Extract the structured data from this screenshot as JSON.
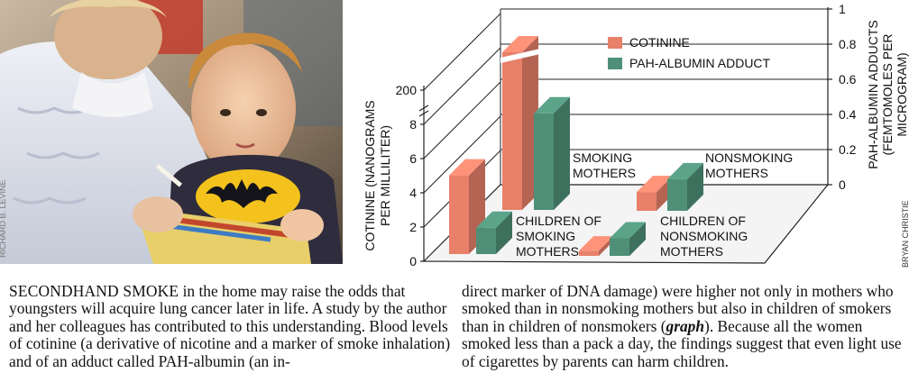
{
  "photo": {
    "credit": "RICHARD B. LEVINE"
  },
  "chart_credit": "BRYAN CHRISTIE",
  "chart_data": {
    "type": "bar",
    "categories": [
      "CHILDREN OF SMOKING MOTHERS",
      "SMOKING MOTHERS",
      "CHILDREN OF NONSMOKING MOTHERS",
      "NONSMOKING MOTHERS"
    ],
    "category_labels": [
      [
        "CHILDREN OF",
        "SMOKING",
        "MOTHERS"
      ],
      [
        "SMOKING",
        "MOTHERS"
      ],
      [
        "CHILDREN OF",
        "NONSMOKING",
        "MOTHERS"
      ],
      [
        "NONSMOKING",
        "MOTHERS"
      ]
    ],
    "series": [
      {
        "name": "COTININE",
        "color": "#e8806a",
        "values": [
          4.6,
          200,
          0.3,
          1.1
        ],
        "axis": "left"
      },
      {
        "name": "PAH-ALBUMIN ADDUCT",
        "color": "#4f8f78",
        "values": [
          0.15,
          0.55,
          0.1,
          0.18
        ],
        "axis": "right"
      }
    ],
    "left_axis": {
      "label": [
        "COTININE (NANOGRAMS",
        "PER MILLILITER)"
      ],
      "ticks": [
        "0",
        "2",
        "4",
        "6",
        "8",
        "200"
      ],
      "range": [
        0,
        200
      ],
      "break_between": [
        8,
        200
      ]
    },
    "right_axis": {
      "label": [
        "PAH-ALBUMIN ADDUCTS",
        "(FEMTOMOLES PER",
        "MICROGRAM)"
      ],
      "ticks": [
        "0",
        "0.2",
        "0.4",
        "0.6",
        "0.8",
        "1"
      ],
      "range": [
        0,
        1
      ]
    },
    "legend_position": "top-right"
  },
  "caption": {
    "lead": "SECONDHAND SMOKE",
    "left_text": " in the home may raise the odds that youngsters will acquire lung cancer later in life. A study by the author and her colleagues has contributed to this understanding. Blood levels of cotinine (a derivative of nicotine and a marker of smoke inhalation) and of an adduct called PAH-albumin (an in-",
    "right_text_a": "direct marker of DNA damage) were higher not only in mothers who smoked than in nonsmoking mothers but also in children of smokers than in children of nonsmokers (",
    "right_ref": "graph",
    "right_text_b": "). Because all the women smoked less than a pack a day, the findings suggest that even light use of cigarettes by parents can harm children."
  }
}
